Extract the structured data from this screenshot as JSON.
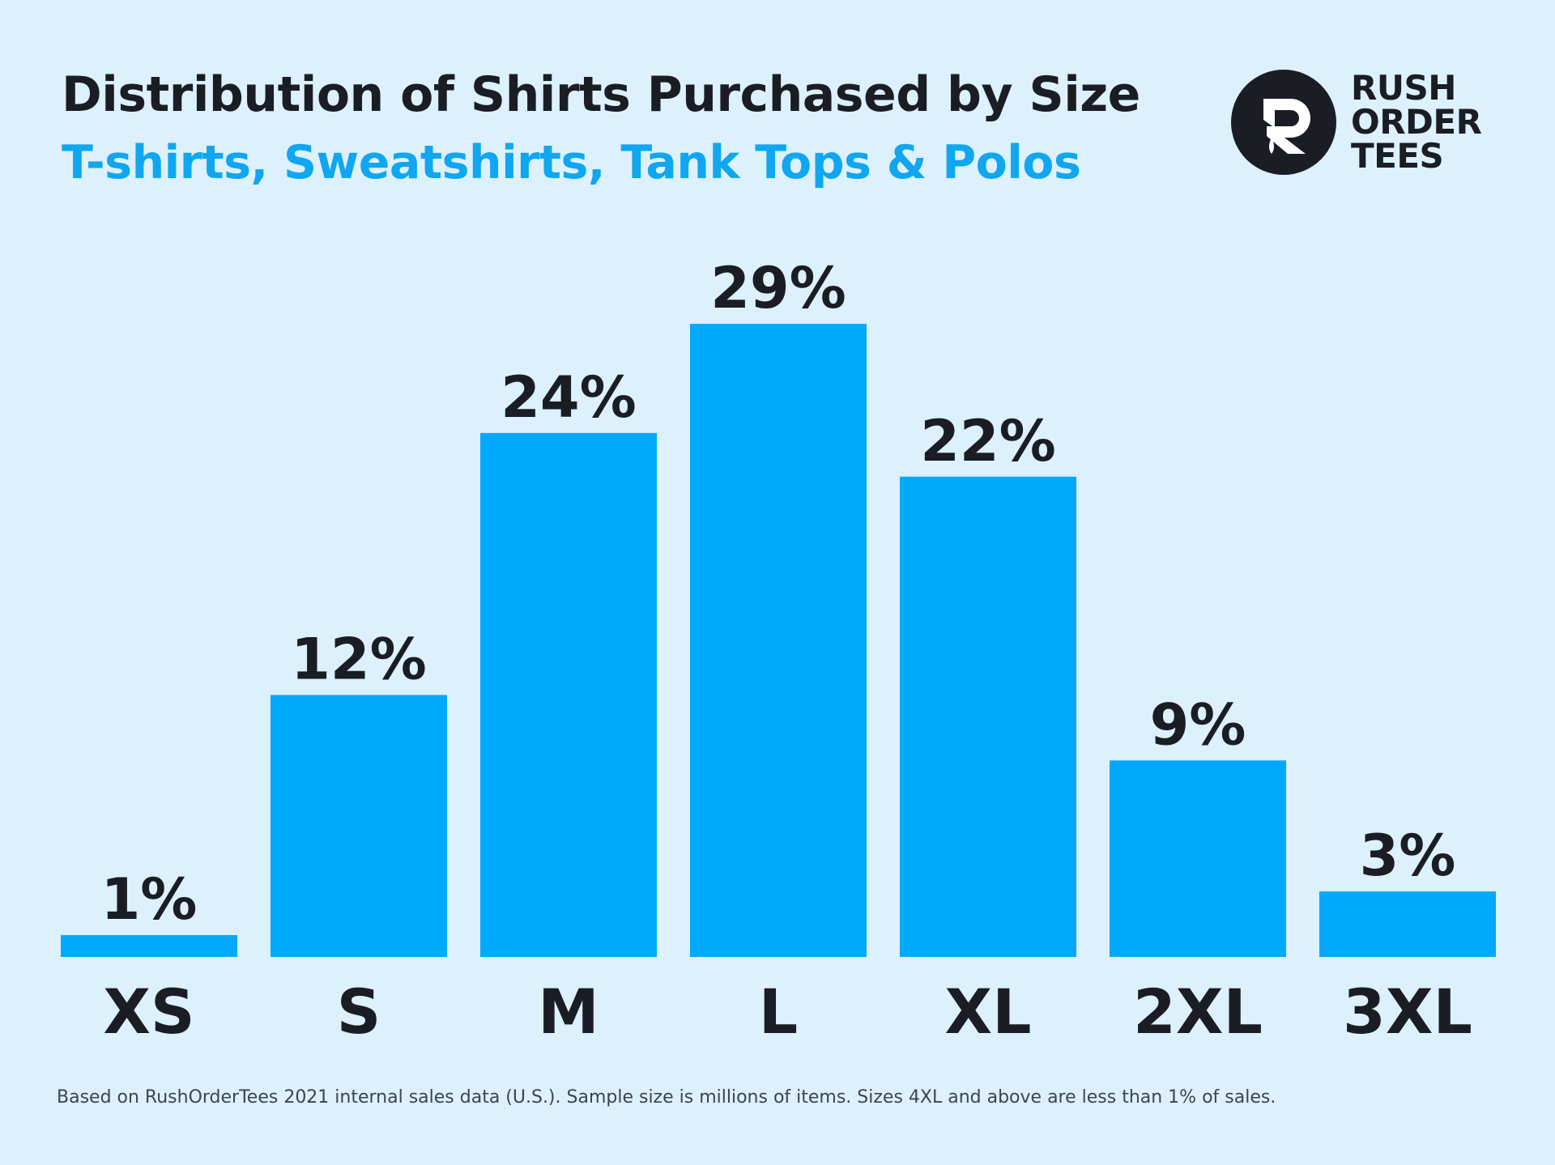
{
  "colors": {
    "background": "#dcf1fd",
    "bar": "#00a9fb",
    "text_dark": "#1a1d24",
    "subtitle": "#10a6f0",
    "footnote": "#3c4450"
  },
  "header": {
    "title": "Distribution of Shirts Purchased by Size",
    "subtitle": "T-shirts, Sweatshirts, Tank Tops & Polos"
  },
  "logo": {
    "icon": "rush-order-tees-r-logo-icon",
    "lines": [
      "RUSH",
      "ORDER",
      "TEES"
    ]
  },
  "chart_data": {
    "type": "bar",
    "title": "Distribution of Shirts Purchased by Size",
    "subtitle": "T-shirts, Sweatshirts, Tank Tops & Polos",
    "categories": [
      "XS",
      "S",
      "M",
      "L",
      "XL",
      "2XL",
      "3XL"
    ],
    "values": [
      1,
      12,
      24,
      29,
      22,
      9,
      3
    ],
    "value_labels": [
      "1%",
      "12%",
      "24%",
      "29%",
      "22%",
      "9%",
      "3%"
    ],
    "unit": "%",
    "xlabel": "",
    "ylabel": "",
    "ylim": [
      0,
      29
    ],
    "grid": false,
    "legend": "none"
  },
  "footnote": "Based on RushOrderTees 2021 internal sales data (U.S.). Sample size is millions of items. Sizes 4XL and above are less than 1% of sales."
}
